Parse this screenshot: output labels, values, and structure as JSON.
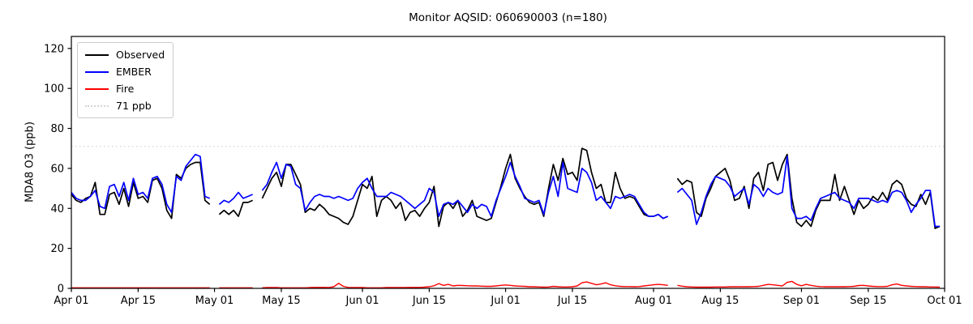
{
  "chart_data": {
    "type": "line",
    "title": "Monitor AQSID: 060690003 (n=180)",
    "xlabel": "",
    "ylabel": "MDA8 O3 (ppb)",
    "n_label": 180,
    "ylim": [
      0,
      126
    ],
    "yticks": [
      0,
      20,
      40,
      60,
      80,
      100,
      120
    ],
    "x_axis": {
      "tick_labels": [
        "Apr 01",
        "Apr 15",
        "May 01",
        "May 15",
        "Jun 01",
        "Jun 15",
        "Jul 01",
        "Jul 15",
        "Aug 01",
        "Aug 15",
        "Sep 01",
        "Sep 15",
        "Oct 01"
      ],
      "tick_day_index": [
        0,
        14,
        30,
        44,
        61,
        75,
        91,
        105,
        122,
        136,
        153,
        167,
        183
      ],
      "total_day_span": 183,
      "months": [
        {
          "name": "Apr",
          "days": 30
        },
        {
          "name": "May",
          "days": 31
        },
        {
          "name": "Jun",
          "days": 30
        },
        {
          "name": "Jul",
          "days": 31
        },
        {
          "name": "Aug",
          "days": 31
        },
        {
          "name": "Sep",
          "days": 30
        }
      ]
    },
    "threshold": {
      "value": 71,
      "label": "71 ppb",
      "color": "#d3d3d3",
      "style": "dotted"
    },
    "grid": false,
    "legend_position": "upper left",
    "missing_days": [
      "May 01",
      "May 10",
      "Aug 05"
    ],
    "series": [
      {
        "name": "Observed",
        "color": "#000000",
        "values": [
          47,
          44,
          43,
          45,
          46,
          53,
          37,
          37,
          47,
          48,
          42,
          50,
          41,
          53,
          45,
          46,
          43,
          54,
          55,
          50,
          39,
          35,
          57,
          55,
          60,
          62,
          63,
          63,
          44,
          42,
          null,
          37,
          39,
          37,
          39,
          36,
          43,
          43,
          44,
          null,
          45,
          50,
          55,
          58,
          51,
          62,
          62,
          57,
          52,
          38,
          40,
          39,
          42,
          40,
          37,
          36,
          35,
          33,
          32,
          36,
          44,
          52,
          50,
          56,
          36,
          44,
          46,
          44,
          40,
          43,
          34,
          38,
          39,
          36,
          40,
          43,
          51,
          31,
          41,
          43,
          40,
          44,
          36,
          39,
          44,
          36,
          35,
          34,
          35,
          43,
          51,
          60,
          67,
          55,
          50,
          46,
          43,
          42,
          43,
          36,
          50,
          62,
          54,
          65,
          57,
          58,
          54,
          70,
          69,
          58,
          50,
          52,
          43,
          43,
          58,
          50,
          45,
          46,
          45,
          41,
          37,
          36,
          36,
          37,
          35,
          36,
          null,
          55,
          52,
          54,
          53,
          38,
          36,
          45,
          50,
          56,
          58,
          60,
          54,
          44,
          45,
          51,
          40,
          55,
          58,
          49,
          62,
          63,
          54,
          62,
          67,
          45,
          33,
          31,
          34,
          31,
          39,
          44,
          44,
          44,
          57,
          44,
          51,
          44,
          37,
          44,
          40,
          42,
          46,
          44,
          48,
          44,
          52,
          54,
          52,
          45,
          42,
          41,
          47,
          42,
          48,
          30,
          31
        ]
      },
      {
        "name": "EMBER",
        "color": "#0000ff",
        "values": [
          48,
          45,
          44,
          44,
          46,
          49,
          41,
          40,
          51,
          52,
          46,
          53,
          44,
          55,
          47,
          48,
          45,
          55,
          56,
          52,
          42,
          38,
          56,
          54,
          61,
          64,
          67,
          66,
          46,
          45,
          null,
          42,
          44,
          43,
          45,
          48,
          45,
          46,
          47,
          null,
          49,
          52,
          58,
          63,
          55,
          62,
          61,
          52,
          50,
          39,
          43,
          46,
          47,
          46,
          46,
          45,
          46,
          45,
          44,
          45,
          50,
          53,
          55,
          50,
          46,
          46,
          46,
          48,
          47,
          46,
          44,
          42,
          40,
          42,
          44,
          50,
          48,
          36,
          42,
          43,
          42,
          44,
          41,
          38,
          42,
          40,
          42,
          41,
          36,
          44,
          50,
          56,
          63,
          56,
          51,
          45,
          44,
          43,
          44,
          37,
          48,
          56,
          46,
          63,
          50,
          49,
          48,
          60,
          58,
          53,
          44,
          46,
          43,
          40,
          46,
          45,
          46,
          47,
          46,
          42,
          38,
          36,
          36,
          37,
          35,
          36,
          null,
          48,
          50,
          47,
          44,
          32,
          38,
          46,
          52,
          56,
          55,
          54,
          51,
          46,
          48,
          50,
          42,
          52,
          50,
          46,
          50,
          48,
          47,
          48,
          66,
          40,
          35,
          35,
          36,
          34,
          40,
          45,
          46,
          47,
          48,
          45,
          44,
          43,
          40,
          45,
          45,
          45,
          44,
          43,
          44,
          43,
          48,
          49,
          48,
          44,
          38,
          42,
          45,
          49,
          49,
          31,
          31
        ]
      },
      {
        "name": "Fire",
        "color": "#ff0000",
        "values": [
          0.3,
          0.3,
          0.3,
          0.3,
          0.3,
          0.3,
          0.3,
          0.3,
          0.3,
          0.3,
          0.3,
          0.3,
          0.3,
          0.3,
          0.3,
          0.3,
          0.3,
          0.3,
          0.3,
          0.3,
          0.3,
          0.3,
          0.3,
          0.3,
          0.3,
          0.3,
          0.3,
          0.3,
          0.3,
          0.3,
          null,
          0.3,
          0.3,
          0.3,
          0.3,
          0.3,
          0.3,
          0.3,
          0.3,
          null,
          0.3,
          0.4,
          0.4,
          0.4,
          0.3,
          0.3,
          0.3,
          0.3,
          0.3,
          0.3,
          0.4,
          0.5,
          0.5,
          0.5,
          0.4,
          0.8,
          2.5,
          1.0,
          0.5,
          0.4,
          0.4,
          0.4,
          0.3,
          0.3,
          0.3,
          0.3,
          0.4,
          0.4,
          0.4,
          0.4,
          0.4,
          0.5,
          0.5,
          0.5,
          0.6,
          0.8,
          1.3,
          2.4,
          1.5,
          2.0,
          1.2,
          1.5,
          1.4,
          1.3,
          1.2,
          1.2,
          1.1,
          1.0,
          1.0,
          1.2,
          1.5,
          1.7,
          1.5,
          1.2,
          1.1,
          1.0,
          0.8,
          0.8,
          0.7,
          0.6,
          0.7,
          1.0,
          0.8,
          0.7,
          0.7,
          0.8,
          1.2,
          2.8,
          3.2,
          2.5,
          1.8,
          2.2,
          2.8,
          1.8,
          1.3,
          1.0,
          0.9,
          0.9,
          0.8,
          0.9,
          1.2,
          1.5,
          1.8,
          2.0,
          1.8,
          1.5,
          null,
          1.5,
          1.1,
          0.8,
          0.7,
          0.6,
          0.6,
          0.6,
          0.6,
          0.7,
          0.7,
          0.7,
          0.8,
          0.8,
          0.8,
          0.8,
          0.8,
          0.9,
          1.0,
          1.5,
          2.0,
          1.8,
          1.5,
          1.2,
          3.0,
          3.5,
          2.0,
          1.3,
          2.0,
          1.5,
          1.1,
          0.9,
          0.8,
          0.8,
          0.8,
          0.8,
          0.8,
          0.9,
          1.0,
          1.4,
          1.5,
          1.2,
          1.0,
          0.9,
          0.9,
          1.0,
          1.8,
          2.2,
          1.5,
          1.2,
          1.0,
          0.9,
          0.8,
          0.8,
          0.7,
          0.7,
          0.6
        ]
      }
    ]
  },
  "legend": {
    "items": [
      {
        "label": "Observed"
      },
      {
        "label": "EMBER"
      },
      {
        "label": "Fire"
      },
      {
        "label": "71 ppb"
      }
    ]
  }
}
